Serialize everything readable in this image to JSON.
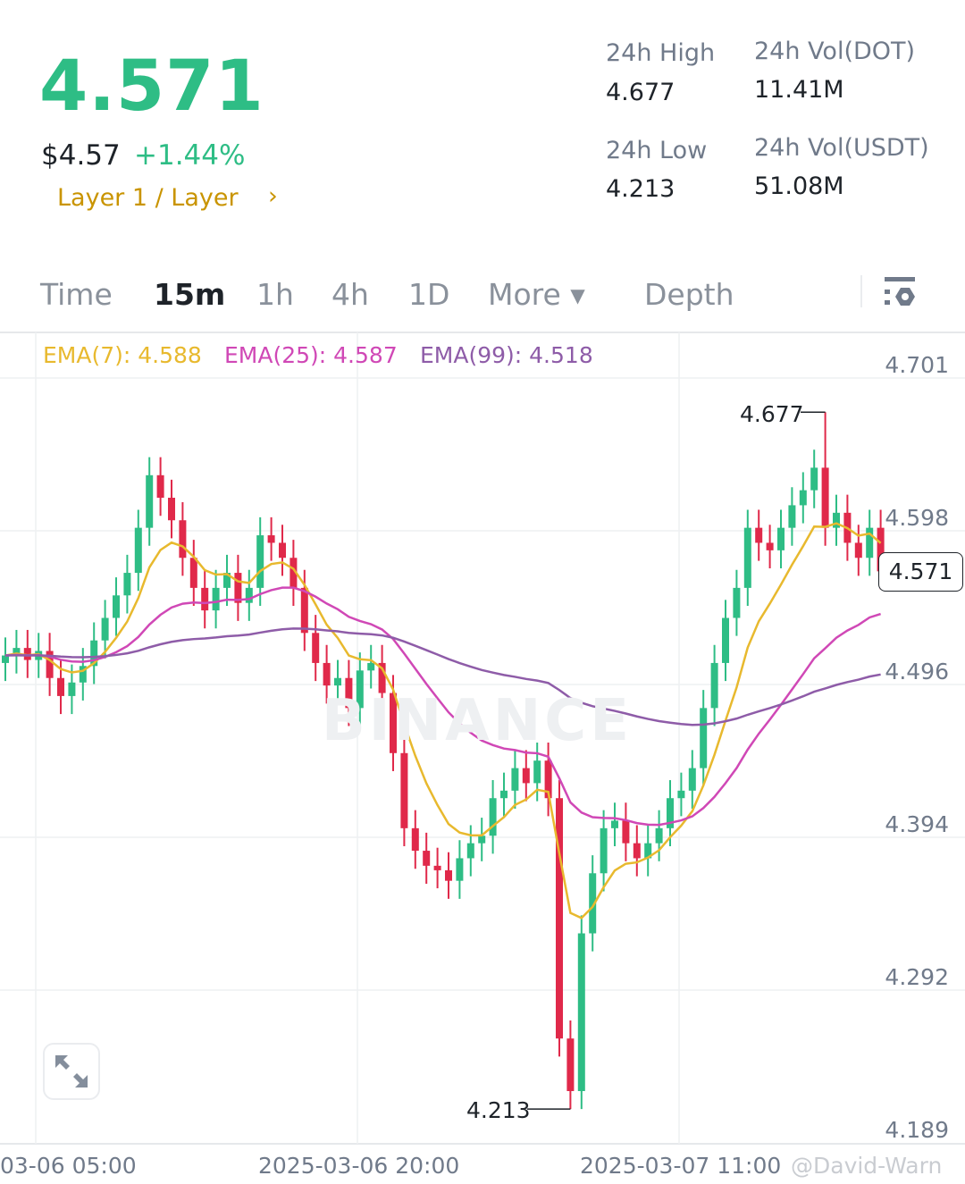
{
  "header": {
    "last_price": "4.571",
    "usd_price": "$4.57",
    "change_pct": "+1.44%",
    "category": "Layer 1 / Layer",
    "category_arrow": "›"
  },
  "stats": {
    "high_label": "24h High",
    "high_value": "4.677",
    "low_label": "24h Low",
    "low_value": "4.213",
    "vol_base_label": "24h Vol(DOT)",
    "vol_base_value": "11.41M",
    "vol_quote_label": "24h Vol(USDT)",
    "vol_quote_value": "51.08M"
  },
  "tabs": [
    {
      "label": "Time"
    },
    {
      "label": "15m",
      "active": true
    },
    {
      "label": "1h"
    },
    {
      "label": "4h"
    },
    {
      "label": "1D"
    },
    {
      "label": "More ▾"
    },
    {
      "label": "Depth"
    }
  ],
  "settings_icon": "chart-settings-icon",
  "expand_icon": "expand-icon",
  "watermark": "BINANCE",
  "credit": "@David-Warn",
  "colors": {
    "up": "#2ebd85",
    "down": "#e0294a",
    "ema7": "#e8b92e",
    "ema25": "#d048b6",
    "ema99": "#8e5ca8"
  },
  "chart_data": {
    "type": "candlestick",
    "interval": "15m",
    "legend": [
      {
        "name": "EMA(7)",
        "text": "EMA(7): 4.588"
      },
      {
        "name": "EMA(25)",
        "text": "EMA(25): 4.587"
      },
      {
        "name": "EMA(99)",
        "text": "EMA(99): 4.518"
      }
    ],
    "y_ticks": [
      "4.701",
      "4.598",
      "4.496",
      "4.394",
      "4.292",
      "4.189"
    ],
    "ylim": [
      4.189,
      4.701
    ],
    "x_ticks": [
      "03-06 05:00",
      "2025-03-06 20:00",
      "2025-03-07 11:00"
    ],
    "grid": true,
    "current_price": "4.571",
    "max_annotation": "4.677",
    "min_annotation": "4.213",
    "close": [
      4.515,
      4.52,
      4.512,
      4.518,
      4.5,
      4.488,
      4.497,
      4.508,
      4.525,
      4.54,
      4.555,
      4.57,
      4.6,
      4.635,
      4.62,
      4.605,
      4.58,
      4.56,
      4.545,
      4.56,
      4.57,
      4.55,
      4.56,
      4.595,
      4.59,
      4.58,
      4.56,
      4.53,
      4.51,
      4.495,
      4.5,
      4.48,
      4.505,
      4.51,
      4.49,
      4.45,
      4.4,
      4.385,
      4.375,
      4.372,
      4.365,
      4.38,
      4.39,
      4.395,
      4.42,
      4.425,
      4.44,
      4.43,
      4.445,
      4.42,
      4.26,
      4.225,
      4.33,
      4.37,
      4.4,
      4.405,
      4.39,
      4.38,
      4.39,
      4.4,
      4.42,
      4.425,
      4.44,
      4.48,
      4.51,
      4.54,
      4.56,
      4.6,
      4.59,
      4.585,
      4.6,
      4.615,
      4.625,
      4.64,
      4.6,
      4.61,
      4.59,
      4.58,
      4.6,
      4.571
    ]
  }
}
